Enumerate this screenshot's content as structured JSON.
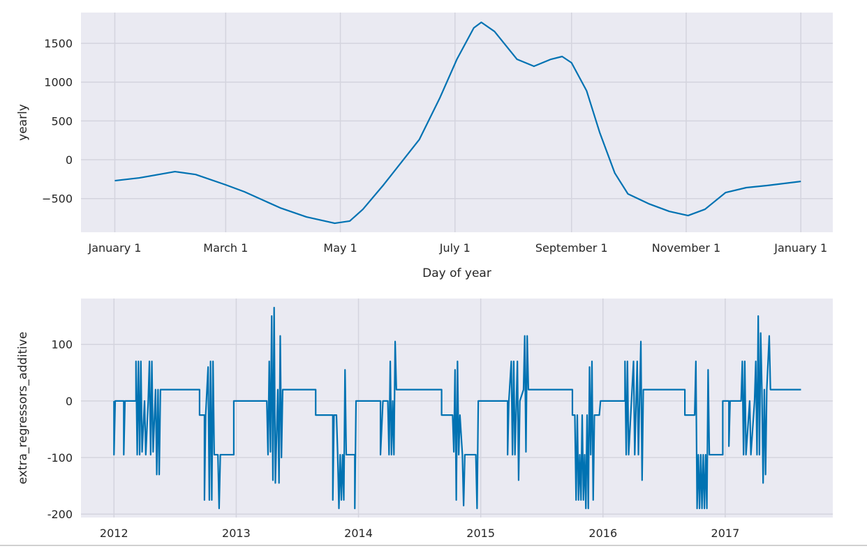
{
  "chart_data": [
    {
      "type": "line",
      "xlabel": "Day of year",
      "ylabel": "yearly",
      "color": "#0072b2",
      "grid": true,
      "x": [
        0,
        13,
        32,
        43,
        59,
        69,
        88,
        102,
        117,
        125,
        132,
        143,
        162,
        173,
        182,
        191,
        195,
        202,
        214,
        223,
        232,
        238,
        243,
        251,
        258,
        266,
        273,
        284,
        295,
        305,
        314,
        325,
        336,
        347,
        365
      ],
      "values": [
        -270,
        -234,
        -153,
        -190,
        -323,
        -413,
        -620,
        -737,
        -818,
        -790,
        -638,
        -323,
        260,
        800,
        1294,
        1698,
        1770,
        1653,
        1294,
        1204,
        1294,
        1330,
        1249,
        889,
        350,
        -171,
        -440,
        -566,
        -665,
        -719,
        -638,
        -422,
        -359,
        -332,
        -279
      ],
      "xlim": [
        -18,
        382
      ],
      "xticks": [
        {
          "value": 0,
          "label": "January 1"
        },
        {
          "value": 59,
          "label": "March 1"
        },
        {
          "value": 120,
          "label": "May 1"
        },
        {
          "value": 181,
          "label": "July 1"
        },
        {
          "value": 243,
          "label": "September 1"
        },
        {
          "value": 304,
          "label": "November 1"
        },
        {
          "value": 365,
          "label": "January 1"
        }
      ],
      "ylim": [
        -934,
        1896
      ],
      "yticks": [
        {
          "value": -500,
          "label": "−500"
        },
        0,
        500,
        1000,
        1500
      ]
    },
    {
      "type": "line",
      "ylabel": "extra_regressors_additive",
      "color": "#0072b2",
      "grid": true,
      "x": [
        2012.0,
        2012.0,
        2012.01,
        2012.08,
        2012.08,
        2012.09,
        2012.18,
        2012.18,
        2012.19,
        2012.2,
        2012.21,
        2012.22,
        2012.23,
        2012.25,
        2012.26,
        2012.28,
        2012.29,
        2012.3,
        2012.31,
        2012.32,
        2012.34,
        2012.35,
        2012.36,
        2012.37,
        2012.38,
        2012.7,
        2012.7,
        2012.74,
        2012.74,
        2012.75,
        2012.77,
        2012.78,
        2012.79,
        2012.8,
        2012.81,
        2012.82,
        2012.85,
        2012.86,
        2012.87,
        2012.98,
        2012.98,
        2013.25,
        2013.26,
        2013.27,
        2013.28,
        2013.29,
        2013.3,
        2013.31,
        2013.32,
        2013.34,
        2013.35,
        2013.36,
        2013.37,
        2013.38,
        2013.65,
        2013.65,
        2013.79,
        2013.79,
        2013.8,
        2013.82,
        2013.83,
        2013.84,
        2013.85,
        2013.86,
        2013.87,
        2013.88,
        2013.89,
        2013.9,
        2013.97,
        2013.97,
        2013.98,
        2014.18,
        2014.18,
        2014.2,
        2014.24,
        2014.25,
        2014.26,
        2014.27,
        2014.28,
        2014.29,
        2014.3,
        2014.31,
        2014.68,
        2014.68,
        2014.77,
        2014.78,
        2014.79,
        2014.8,
        2014.81,
        2014.82,
        2014.83,
        2014.85,
        2014.86,
        2014.87,
        2014.96,
        2014.97,
        2014.98,
        2015.22,
        2015.22,
        2015.23,
        2015.25,
        2015.26,
        2015.27,
        2015.28,
        2015.3,
        2015.31,
        2015.32,
        2015.35,
        2015.36,
        2015.37,
        2015.38,
        2015.39,
        2015.75,
        2015.75,
        2015.77,
        2015.78,
        2015.79,
        2015.8,
        2015.81,
        2015.82,
        2015.83,
        2015.84,
        2015.85,
        2015.86,
        2015.87,
        2015.88,
        2015.89,
        2015.9,
        2015.91,
        2015.92,
        2015.93,
        2015.97,
        2015.98,
        2016.18,
        2016.18,
        2016.19,
        2016.2,
        2016.21,
        2016.25,
        2016.26,
        2016.28,
        2016.29,
        2016.31,
        2016.32,
        2016.33,
        2016.67,
        2016.67,
        2016.75,
        2016.76,
        2016.77,
        2016.78,
        2016.79,
        2016.8,
        2016.81,
        2016.82,
        2016.83,
        2016.84,
        2016.85,
        2016.86,
        2016.87,
        2016.98,
        2016.98,
        2017.03,
        2017.03,
        2017.04,
        2017.13,
        2017.14,
        2017.15,
        2017.16,
        2017.17,
        2017.2,
        2017.21,
        2017.24,
        2017.25,
        2017.26,
        2017.27,
        2017.28,
        2017.29,
        2017.3,
        2017.31,
        2017.32,
        2017.33,
        2017.34,
        2017.36,
        2017.37,
        2017.62
      ],
      "values": [
        0,
        -95,
        0,
        0,
        -95,
        0,
        0,
        70,
        -95,
        70,
        -95,
        70,
        -90,
        0,
        -95,
        0,
        70,
        -95,
        70,
        -90,
        20,
        -130,
        20,
        -130,
        20,
        20,
        -25,
        -25,
        -175,
        -25,
        60,
        -175,
        70,
        -175,
        70,
        -95,
        -95,
        -190,
        -95,
        -95,
        0,
        0,
        -95,
        70,
        -90,
        150,
        -140,
        165,
        -145,
        20,
        -145,
        115,
        -100,
        20,
        20,
        -25,
        -25,
        -175,
        -25,
        -25,
        -95,
        -190,
        -95,
        -175,
        -95,
        -175,
        55,
        -95,
        -95,
        -190,
        0,
        0,
        -95,
        0,
        0,
        -95,
        70,
        -95,
        0,
        -95,
        105,
        20,
        20,
        -25,
        -25,
        -90,
        55,
        -175,
        70,
        -95,
        -25,
        -95,
        -185,
        -95,
        -95,
        -190,
        0,
        0,
        -95,
        0,
        70,
        -95,
        70,
        -95,
        70,
        -140,
        0,
        20,
        115,
        -90,
        115,
        20,
        20,
        -25,
        -25,
        -175,
        -25,
        -175,
        -95,
        -175,
        -25,
        -175,
        -95,
        -190,
        -25,
        -190,
        60,
        -95,
        70,
        -175,
        -25,
        -25,
        0,
        0,
        70,
        -95,
        70,
        -95,
        70,
        -95,
        70,
        -95,
        105,
        -140,
        20,
        20,
        -25,
        -25,
        70,
        -190,
        -95,
        -190,
        -95,
        -190,
        -95,
        -190,
        -95,
        -190,
        55,
        -95,
        -95,
        0,
        0,
        -80,
        0,
        0,
        70,
        -95,
        70,
        -95,
        0,
        -95,
        0,
        70,
        -95,
        150,
        -95,
        120,
        20,
        -145,
        20,
        -130,
        20,
        115,
        20,
        20
      ],
      "xlim": [
        2011.73,
        2017.88
      ],
      "xticks": [
        2012,
        2013,
        2014,
        2015,
        2016,
        2017
      ],
      "ylim": [
        -206,
        181
      ],
      "yticks": [
        -200,
        -100,
        0,
        100
      ]
    }
  ]
}
